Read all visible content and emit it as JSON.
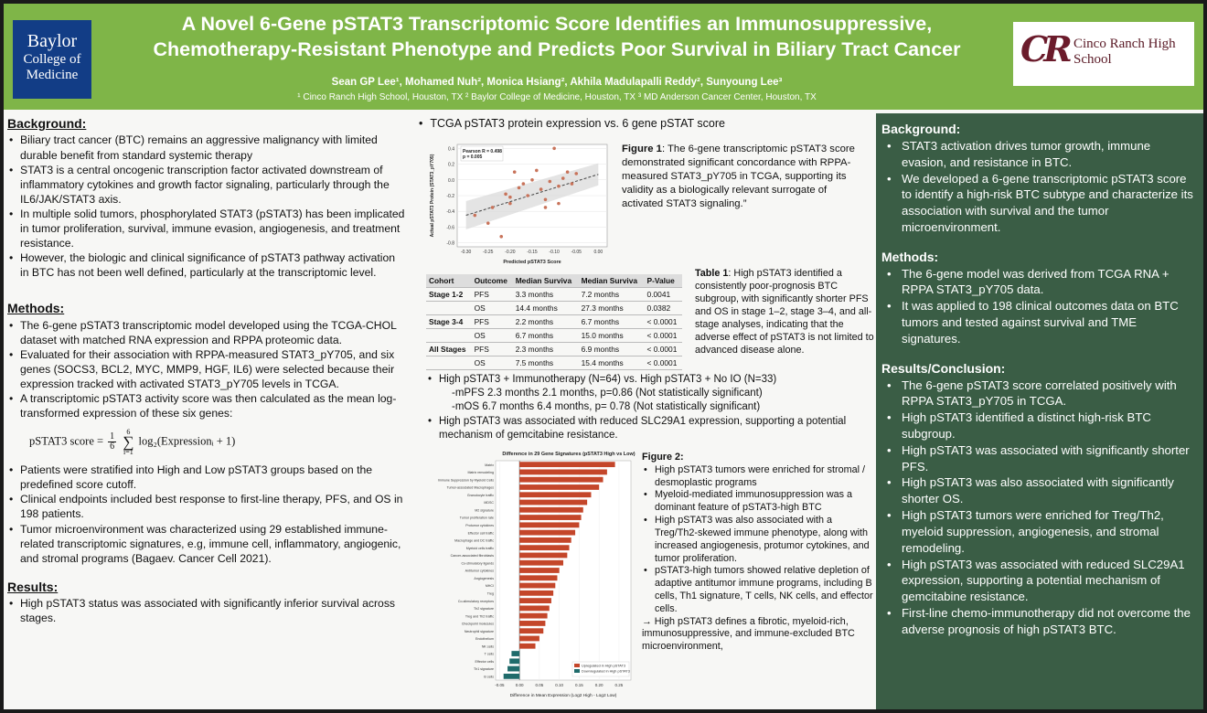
{
  "header": {
    "bcm_logo": [
      "Baylor",
      "College of",
      "Medicine"
    ],
    "title_line1": "A Novel 6-Gene pSTAT3 Transcriptomic Score Identifies an Immunosuppressive,",
    "title_line2": "Chemotherapy-Resistant Phenotype and Predicts Poor Survival in Biliary Tract Cancer",
    "authors": "Sean GP Lee¹, Mohamed Nuh², Monica Hsiang², Akhila Madulapalli Reddy², Sunyoung Lee³",
    "affiliations": "¹ Cinco Ranch High School, Houston, TX  ² Baylor College of Medicine, Houston, TX  ³ MD Anderson Cancer Center, Houston, TX",
    "crhs_mark": "CR",
    "crhs_name_1": "Cinco Ranch High",
    "crhs_name_2": "School"
  },
  "left": {
    "background_head": "Background:",
    "background": [
      "Biliary tract cancer (BTC) remains an aggressive malignancy with limited durable benefit from standard systemic therapy",
      "STAT3 is a central oncogenic transcription factor activated downstream of inflammatory cytokines and growth factor signaling, particularly through the IL6/JAK/STAT3 axis.",
      "In multiple solid tumors, phosphorylated STAT3 (pSTAT3) has been implicated in tumor proliferation, survival, immune evasion, angiogenesis, and treatment resistance.",
      "However, the biologic and clinical significance of pSTAT3 pathway activation in BTC has not been well defined, particularly at the transcriptomic level."
    ],
    "methods_head": "Methods:",
    "methods": [
      "The 6-gene pSTAT3 transcriptomic model developed using the TCGA-CHOL dataset with matched RNA expression and RPPA proteomic data.",
      "Evaluated for their association with RPPA-measured STAT3_pY705, and six genes (SOCS3, BCL2, MYC, MMP9, HGF, IL6) were selected because their expression tracked with activated STAT3_pY705 levels in TCGA.",
      "A transcriptomic pSTAT3 activity score was then calculated as the mean log-transformed expression of these six genes:"
    ],
    "formula_lhs": "pSTAT3 score =",
    "formula_rhs": "log₂(Expressionᵢ + 1)",
    "methods2": [
      "Patients were stratified into High and Low pSTAT3 groups based on the predefined score cutoff.",
      "Clinical endpoints included best response to first-line therapy, PFS, and OS in 198 patients.",
      "Tumor microenvironment was characterized using 29 established immune-related transcriptomic signatures, e.g, immune cell, inflammatory, angiogenic, and stromal programs (Bagaev. Cancer Cell 2021)."
    ],
    "results_head": "Results:",
    "results": [
      "High pSTAT3 status was associated with significantly inferior survival across stages."
    ]
  },
  "middle": {
    "head": "TCGA pSTAT3 protein expression vs. 6 gene pSTAT score",
    "fig1_caption_bold": "Figure 1",
    "fig1_caption": ": The 6-gene transcriptomic pSTAT3 score demonstrated significant concordance with RPPA-measured STAT3_pY705 in TCGA, supporting its validity as a biologically relevant surrogate of activated STAT3 signaling.”",
    "table_caption_bold": "Table 1",
    "table_caption": ": High pSTAT3 identified a consistently poor-prognosis BTC subgroup, with significantly shorter PFS and OS in stage 1–2, stage 3–4, and all-stage analyses, indicating that the adverse effect of pSTAT3 is not limited to advanced disease alone.",
    "table": {
      "headers": [
        "Cohort",
        "Outcome",
        "Median Surviva",
        "Median Surviva",
        "P-Value"
      ],
      "rows": [
        [
          "Stage 1-2",
          "PFS",
          "3.3 months",
          "7.2 months",
          "0.0041"
        ],
        [
          "",
          "OS",
          "14.4 months",
          "27.3 months",
          "0.0382"
        ],
        [
          "Stage 3-4",
          "PFS",
          "2.2 months",
          "6.7 months",
          "< 0.0001"
        ],
        [
          "",
          "OS",
          "6.7 months",
          "15.0 months",
          "< 0.0001"
        ],
        [
          "All Stages",
          "PFS",
          "2.3 months",
          "6.9 months",
          "< 0.0001"
        ],
        [
          "",
          "OS",
          "7.5 months",
          "15.4 months",
          "< 0.0001"
        ]
      ]
    },
    "io_line": "High pSTAT3 + Immunotherapy (N=64) vs. High pSTAT3 + No IO (N=33)",
    "io_pfs": "-mPFS 2.3 months 2.1 months, p=0.86 (Not statistically significant)",
    "io_os": "-mOS 6.7 months 6.4 months, p= 0.78 (Not statistically significant)",
    "slc_line": "High pSTAT3 was associated with reduced SLC29A1 expression, supporting a potential mechanism of gemcitabine resistance.",
    "fig2_head": "Figure 2:",
    "fig2_points": [
      "High pSTAT3 tumors were enriched for stromal / desmoplastic programs",
      "Myeloid-mediated immunosuppression was a dominant feature of pSTAT3-high BTC",
      "High pSTAT3 was also associated with a Treg/Th2-skewed immune phenotype, along with increased angiogenesis, protumor cytokines, and tumor proliferation.",
      "pSTAT3-high tumors showed relative depletion of adaptive antitumor immune programs, including B cells, Th1 signature, T cells, NK cells, and effector cells."
    ],
    "fig2_conclusion": "→ High pSTAT3 defines a fibrotic, myeloid-rich, immunosuppressive, and immune-excluded BTC microenvironment,"
  },
  "right": {
    "background_head": "Background:",
    "background": [
      "STAT3 activation drives tumor growth, immune evasion, and resistance in BTC.",
      "We developed a 6-gene transcriptomic pSTAT3 score to identify a high-risk BTC subtype and characterize its association with survival and the tumor microenvironment."
    ],
    "methods_head": "Methods:",
    "methods": [
      "The 6-gene model was derived from TCGA RNA + RPPA STAT3_pY705 data.",
      "It was applied to 198 clinical outcomes data on BTC tumors and tested against survival and TME signatures."
    ],
    "results_head": "Results/Conclusion:",
    "results": [
      "The 6-gene pSTAT3 score correlated positively with RPPA STAT3_pY705 in TCGA.",
      "High pSTAT3 identified a distinct high-risk BTC subgroup.",
      "High pSTAT3 was associated with significantly shorter PFS.",
      "High pSTAT3 was also associated with significantly shorter OS.",
      "High pSTAT3 tumors were enriched for Treg/Th2, myeloid suppression, angiogenesis, and stromal remodeling.",
      "High pSTAT3 was associated with reduced SLC29A1 expression, supporting a potential mechanism of gemcitabine resistance.",
      "First-line chemo-immunotherapy did not overcome the adverse prognosis of high pSTAT3 BTC."
    ]
  },
  "chart_data": [
    {
      "type": "scatter",
      "title": "",
      "xlabel": "Predicted pSTAT3 Score",
      "ylabel": "Actual pSTAT3 Protein (STAT3_pY705)",
      "annotation": "Pearson R = 0.498\np = 0.005",
      "xlim": [
        -0.32,
        0.02
      ],
      "ylim": [
        -0.85,
        0.45
      ],
      "xticks": [
        "-0.30",
        "-0.25",
        "-0.20",
        "-0.15",
        "-0.10",
        "-0.05",
        "0.00"
      ],
      "yticks": [
        "0.4",
        "0.2",
        "0.0",
        "-0.2",
        "-0.4",
        "-0.6",
        "-0.8"
      ],
      "points": [
        [
          -0.28,
          -0.45
        ],
        [
          -0.25,
          -0.55
        ],
        [
          -0.22,
          -0.72
        ],
        [
          -0.21,
          -0.18
        ],
        [
          -0.2,
          -0.3
        ],
        [
          -0.19,
          0.1
        ],
        [
          -0.18,
          -0.1
        ],
        [
          -0.17,
          -0.05
        ],
        [
          -0.16,
          -0.2
        ],
        [
          -0.15,
          0.0
        ],
        [
          -0.14,
          0.12
        ],
        [
          -0.13,
          -0.12
        ],
        [
          -0.12,
          -0.35
        ],
        [
          -0.11,
          -0.02
        ],
        [
          -0.1,
          0.4
        ],
        [
          -0.09,
          -0.08
        ],
        [
          -0.08,
          0.02
        ],
        [
          -0.07,
          0.1
        ],
        [
          -0.06,
          -0.05
        ],
        [
          -0.05,
          0.08
        ],
        [
          -0.12,
          -0.25
        ],
        [
          -0.09,
          -0.3
        ],
        [
          -0.2,
          -0.22
        ],
        [
          -0.24,
          -0.35
        ]
      ],
      "fit": {
        "x": [
          -0.3,
          0.0
        ],
        "y": [
          -0.45,
          0.07
        ]
      },
      "point_color": "#c8735a"
    },
    {
      "type": "bar",
      "orientation": "horizontal",
      "title": "Difference in 29 Gene Signatures (pSTAT3 High vs Low)",
      "xlabel": "Difference in Mean Expression (Log2 High - Log2 Low)",
      "xlim": [
        -0.06,
        0.28
      ],
      "xticks": [
        "-0.05",
        "0.00",
        "0.05",
        "0.10",
        "0.15",
        "0.20",
        "0.25"
      ],
      "categories": [
        "Matrix",
        "Matrix remodeling",
        "Immune Suppression by Myeloid Cells",
        "Tumor-associated Macrophages",
        "Granulocyte traffic",
        "MDSC",
        "M2 signature",
        "Tumor proliferation rate",
        "Protumor cytokines",
        "Effector cell traffic",
        "Macrophage and DC traffic",
        "Myeloid cells traffic",
        "Cancer-associated fibroblasts",
        "Co-stimulatory ligands",
        "Antitumor cytokines",
        "Angiogenesis",
        "MHCI",
        "Treg",
        "Co-stimulatory receptors",
        "Th2 signature",
        "Treg and Th2 traffic",
        "Checkpoint molecules",
        "Neutrophil signature",
        "Endothelium",
        "NK cells",
        "T cells",
        "Effector cells",
        "Th1 signature",
        "B cells"
      ],
      "values": [
        0.24,
        0.22,
        0.21,
        0.2,
        0.18,
        0.17,
        0.16,
        0.155,
        0.15,
        0.14,
        0.13,
        0.125,
        0.12,
        0.11,
        0.1,
        0.095,
        0.09,
        0.085,
        0.08,
        0.075,
        0.07,
        0.065,
        0.06,
        0.05,
        0.04,
        -0.02,
        -0.025,
        -0.03,
        -0.04
      ],
      "legend": [
        "Upregulated in High pSTAT3",
        "Downregulated in High pSTAT3"
      ],
      "colors": {
        "up": "#c4462a",
        "down": "#1f6b6b"
      }
    }
  ]
}
